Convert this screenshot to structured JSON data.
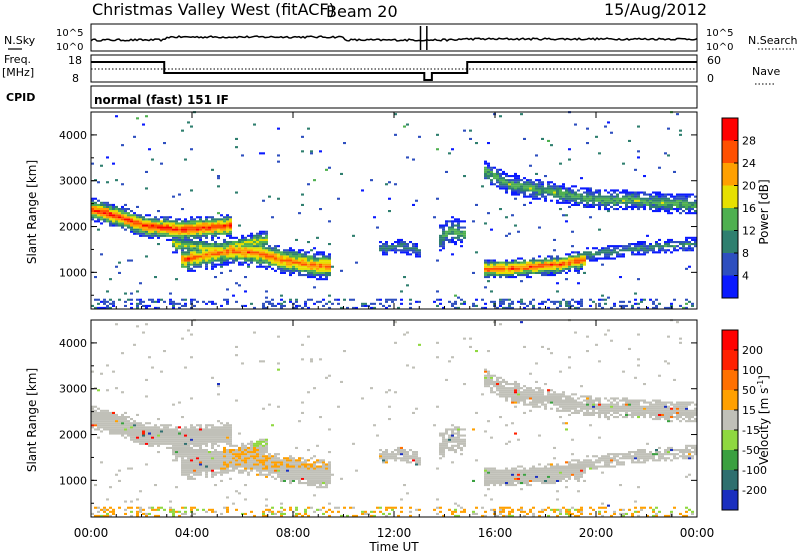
{
  "header": {
    "title": "Christmas Valley West (fitACF)",
    "beam": "Beam 20",
    "date": "15/Aug/2012"
  },
  "status_panel": {
    "nsky_label": "N.Sky",
    "nsky_ticks": [
      "10^5",
      "10^0"
    ],
    "nsearch_label": "N.Search",
    "nsearch_ticks": [
      "10^5",
      "10^0"
    ],
    "freq_label_1": "Freq.",
    "freq_label_2": "[MHz]",
    "freq_ticks": [
      "18",
      "8"
    ],
    "nave_label": "Nave",
    "nave_ticks": [
      "60",
      "0"
    ],
    "cpid_label": "CPID",
    "cpid_value": "normal (fast) 151 IF"
  },
  "chart_data": [
    {
      "type": "heatmap",
      "title": "",
      "ylabel": "Slant Range [km]",
      "xlabel": "",
      "ylim": [
        200,
        4500
      ],
      "yticks": [
        "1000",
        "2000",
        "3000",
        "4000"
      ],
      "colorbar": {
        "label": "Power [dB]",
        "range": [
          0,
          32
        ],
        "tick_labels": [
          "4",
          "8",
          "12",
          "16",
          "20",
          "24",
          "28"
        ],
        "colors": [
          "#0a1aff",
          "#2e4fbf",
          "#2f7f6f",
          "#4fb050",
          "#e6e000",
          "#ffa000",
          "#ff5000",
          "#ff0000"
        ]
      },
      "bands": [
        {
          "t": [
            0,
            1,
            2,
            2.8,
            3.5,
            4.5,
            5.5
          ],
          "r": [
            2350,
            2200,
            2000,
            1950,
            1900,
            1950,
            2000
          ],
          "w": 260,
          "peak": 0.9
        },
        {
          "t": [
            3.5,
            4.5,
            5.5,
            6.5,
            7.5,
            8.5,
            9.5
          ],
          "r": [
            1250,
            1350,
            1450,
            1400,
            1250,
            1150,
            1100
          ],
          "w": 300,
          "peak": 0.8
        },
        {
          "t": [
            3.2,
            4.0,
            5.0,
            6.0,
            7.0
          ],
          "r": [
            1600,
            1550,
            1500,
            1600,
            1700
          ],
          "w": 200,
          "peak": 0.55
        },
        {
          "t": [
            11.3,
            12.2,
            13.0
          ],
          "r": [
            1500,
            1550,
            1450
          ],
          "w": 150,
          "peak": 0.35
        },
        {
          "t": [
            13.7,
            14.2,
            14.8
          ],
          "r": [
            1700,
            1900,
            1800
          ],
          "w": 300,
          "peak": 0.4
        },
        {
          "t": [
            15.5,
            16.5,
            17.5,
            18.5,
            19.5,
            20.5,
            21.5,
            22.5,
            24
          ],
          "r": [
            3200,
            2900,
            2800,
            2700,
            2600,
            2550,
            2550,
            2500,
            2450
          ],
          "w": 220,
          "peak": 0.45
        },
        {
          "t": [
            15.5,
            16.5,
            17.5,
            18.5,
            19.5
          ],
          "r": [
            1050,
            1050,
            1100,
            1150,
            1250
          ],
          "w": 220,
          "peak": 0.85
        },
        {
          "t": [
            19.5,
            21,
            22.5,
            24
          ],
          "r": [
            1350,
            1450,
            1550,
            1600
          ],
          "w": 150,
          "peak": 0.35
        }
      ]
    },
    {
      "type": "heatmap",
      "title": "",
      "ylabel": "Slant Range [km]",
      "xlabel": "Time UT",
      "ylim": [
        200,
        4500
      ],
      "yticks": [
        "1000",
        "2000",
        "3000",
        "4000"
      ],
      "xticks": [
        "00:00",
        "04:00",
        "08:00",
        "12:00",
        "16:00",
        "20:00",
        "00:00"
      ],
      "xlim": [
        0,
        24
      ],
      "colorbar": {
        "label": "Velocity [m s",
        "label_sup": "-1",
        "label_end": "]",
        "range": [
          -250,
          250
        ],
        "tick_labels": [
          "200",
          "100",
          "50",
          "15",
          "-15",
          "-50",
          "-100",
          "-200"
        ],
        "colors": [
          "#1a2fbf",
          "#2f6f6f",
          "#3aa040",
          "#8fd840",
          "#c0c0b8",
          "#ffa000",
          "#ff7000",
          "#ff2000",
          "#ff0000"
        ]
      },
      "ground_color": "#c0c0b8"
    }
  ],
  "x_axis": {
    "label": "Time UT",
    "ticks": [
      "00:00",
      "04:00",
      "08:00",
      "12:00",
      "16:00",
      "20:00",
      "00:00"
    ]
  }
}
